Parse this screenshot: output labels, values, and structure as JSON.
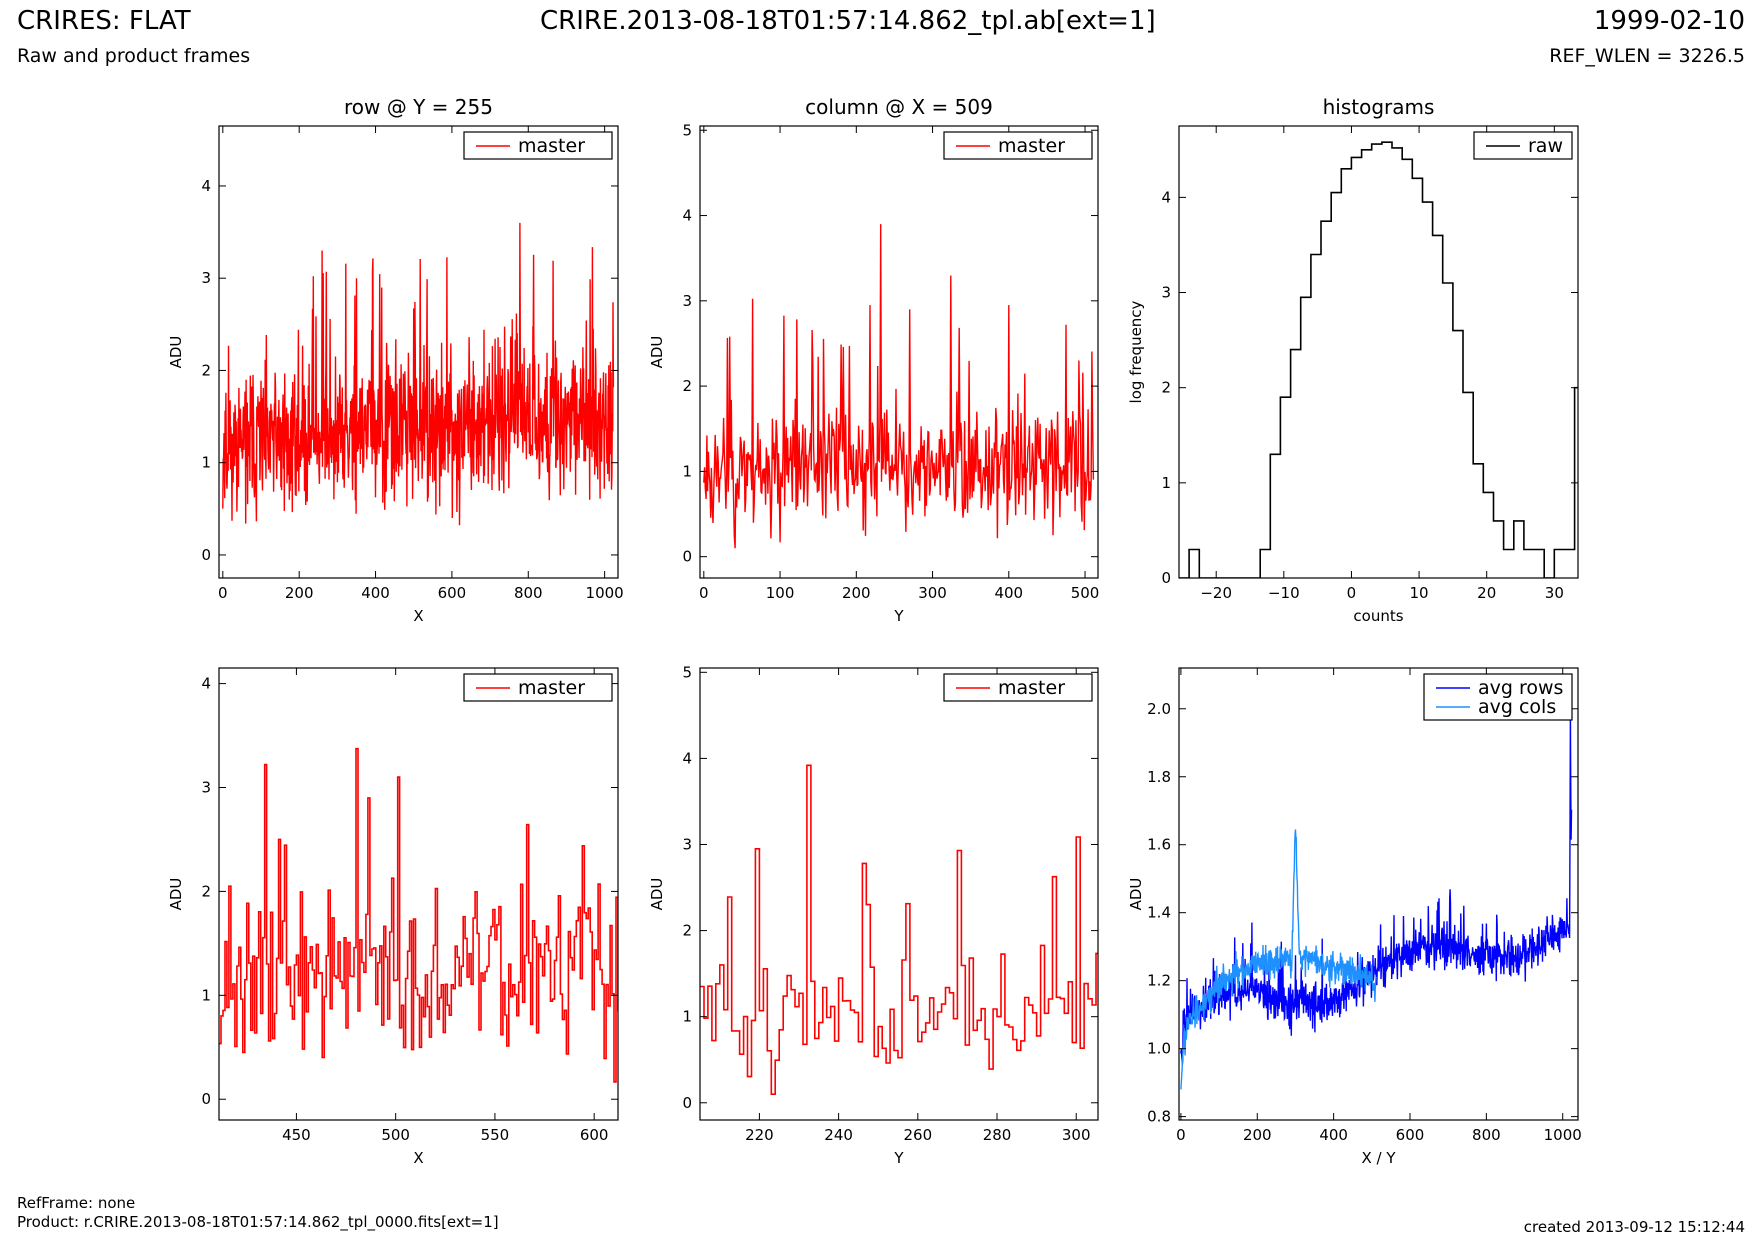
{
  "header": {
    "title_left": "CRIRES: FLAT",
    "subtitle_left": "Raw and product frames",
    "title_center": "CRIRE.2013-08-18T01:57:14.862_tpl.ab[ext=1]",
    "title_right": "1999-02-10",
    "subtitle_right": "REF_WLEN = 3226.5"
  },
  "footer": {
    "ref_frame": "RefFrame: none",
    "product": "Product: r.CRIRE.2013-08-18T01:57:14.862_tpl_0000.fits[ext=1]",
    "created": "created 2013-09-12 15:12:44"
  },
  "colors": {
    "master": "#ff0000",
    "raw": "#000000",
    "avg_rows": "#0000ff",
    "avg_cols": "#1e90ff"
  },
  "chart_data": [
    {
      "id": "row-full",
      "type": "line",
      "title": "row @ Y = 255",
      "xlabel": "X",
      "ylabel": "ADU",
      "xlim": [
        -10,
        1035
      ],
      "ylim": [
        -0.25,
        4.65
      ],
      "xticks": [
        0,
        200,
        400,
        600,
        800,
        1000
      ],
      "yticks": [
        0,
        1,
        2,
        3,
        4
      ],
      "legend": "top-right",
      "series": [
        {
          "name": "master",
          "kind": "noise",
          "n": 1024,
          "x0": 0,
          "dx": 1,
          "base": 1.2,
          "amp": 0.55,
          "trend": 0.0003,
          "seed": 11,
          "spikes": [
            [
              260,
              3.3
            ],
            [
              778,
              3.6
            ],
            [
              350,
              3.0
            ]
          ]
        }
      ]
    },
    {
      "id": "col-full",
      "type": "line",
      "title": "column @ X = 509",
      "xlabel": "Y",
      "ylabel": "ADU",
      "xlim": [
        -5,
        517
      ],
      "ylim": [
        -0.25,
        5.05
      ],
      "xticks": [
        0,
        100,
        200,
        300,
        400,
        500
      ],
      "yticks": [
        0,
        1,
        2,
        3,
        4,
        5
      ],
      "legend": "top-right",
      "series": [
        {
          "name": "master",
          "kind": "noise",
          "n": 512,
          "x0": 0,
          "dx": 1,
          "base": 1.05,
          "amp": 0.5,
          "trend": 0,
          "seed": 23,
          "spikes": [
            [
              232,
              3.9
            ],
            [
              218,
              2.95
            ],
            [
              270,
              2.9
            ]
          ]
        }
      ]
    },
    {
      "id": "histograms",
      "type": "step",
      "title": "histograms",
      "xlabel": "counts",
      "ylabel": "log frequency",
      "xlim": [
        -25.5,
        33.5
      ],
      "ylim": [
        0,
        4.75
      ],
      "xticks": [
        -20,
        -10,
        0,
        10,
        20,
        30
      ],
      "yticks": [
        0,
        1,
        2,
        3,
        4
      ],
      "legend": "top-right",
      "series": [
        {
          "name": "raw",
          "x": [
            -25.5,
            -24,
            -22.5,
            -21,
            -19.5,
            -18,
            -16.5,
            -15,
            -13.5,
            -12,
            -10.5,
            -9,
            -7.5,
            -6,
            -4.5,
            -3,
            -1.5,
            0,
            1.5,
            3,
            4.5,
            6,
            7.5,
            9,
            10.5,
            12,
            13.5,
            15,
            16.5,
            18,
            19.5,
            21,
            22.5,
            24,
            25.5,
            27,
            28.5,
            30,
            31.5,
            33
          ],
          "y": [
            0,
            0.3,
            0,
            0,
            0,
            0,
            0,
            0,
            0.3,
            1.3,
            1.9,
            2.4,
            2.95,
            3.4,
            3.75,
            4.05,
            4.3,
            4.42,
            4.5,
            4.56,
            4.58,
            4.52,
            4.4,
            4.2,
            3.95,
            3.6,
            3.1,
            2.6,
            1.95,
            1.2,
            0.9,
            0.6,
            0.3,
            0.6,
            0.3,
            0.3,
            0,
            0.3,
            0.3,
            2.0
          ]
        }
      ]
    },
    {
      "id": "row-zoom",
      "type": "step",
      "title": "",
      "xlabel": "X",
      "ylabel": "ADU",
      "xlim": [
        411,
        612
      ],
      "ylim": [
        -0.2,
        4.15
      ],
      "xticks": [
        450,
        500,
        550,
        600
      ],
      "yticks": [
        0,
        1,
        2,
        3,
        4
      ],
      "legend": "top-right",
      "series": [
        {
          "name": "master",
          "kind": "noise",
          "n": 202,
          "x0": 411,
          "dx": 1,
          "base": 1.2,
          "amp": 0.6,
          "trend": 0,
          "seed": 37,
          "spikes": [
            [
              434,
              3.22
            ],
            [
              501,
              3.1
            ],
            [
              486,
              2.9
            ],
            [
              416,
              2.05
            ],
            [
              441,
              2.5
            ]
          ]
        }
      ]
    },
    {
      "id": "col-zoom",
      "type": "step",
      "title": "",
      "xlabel": "Y",
      "ylabel": "ADU",
      "xlim": [
        205,
        305.5
      ],
      "ylim": [
        -0.2,
        5.05
      ],
      "xticks": [
        220,
        240,
        260,
        280,
        300
      ],
      "yticks": [
        0,
        1,
        2,
        3,
        4,
        5
      ],
      "legend": "top-right",
      "series": [
        {
          "name": "master",
          "kind": "noise",
          "n": 101,
          "x0": 205,
          "dx": 1,
          "base": 1.05,
          "amp": 0.55,
          "trend": 0,
          "seed": 51,
          "spikes": [
            [
              232,
              3.92
            ],
            [
              219,
              2.95
            ],
            [
              270,
              2.93
            ],
            [
              246,
              2.78
            ]
          ]
        }
      ]
    },
    {
      "id": "averages",
      "type": "line",
      "title": "",
      "xlabel": "X / Y",
      "ylabel": "ADU",
      "xlim": [
        -5,
        1040
      ],
      "ylim": [
        0.79,
        2.12
      ],
      "xticks": [
        0,
        200,
        400,
        600,
        800,
        1000
      ],
      "yticks": [
        0.8,
        1.0,
        1.2,
        1.4,
        1.6,
        1.8,
        2.0
      ],
      "ytick_fmt": 1,
      "legend": "top-right",
      "series": [
        {
          "name": "avg rows",
          "kind": "rows",
          "n": 1024,
          "x0": 0,
          "dx": 1,
          "seed": 71,
          "color": "#0000ff"
        },
        {
          "name": "avg cols",
          "kind": "cols",
          "n": 512,
          "x0": 0,
          "dx": 1,
          "seed": 83,
          "color": "#1e90ff"
        }
      ]
    }
  ]
}
